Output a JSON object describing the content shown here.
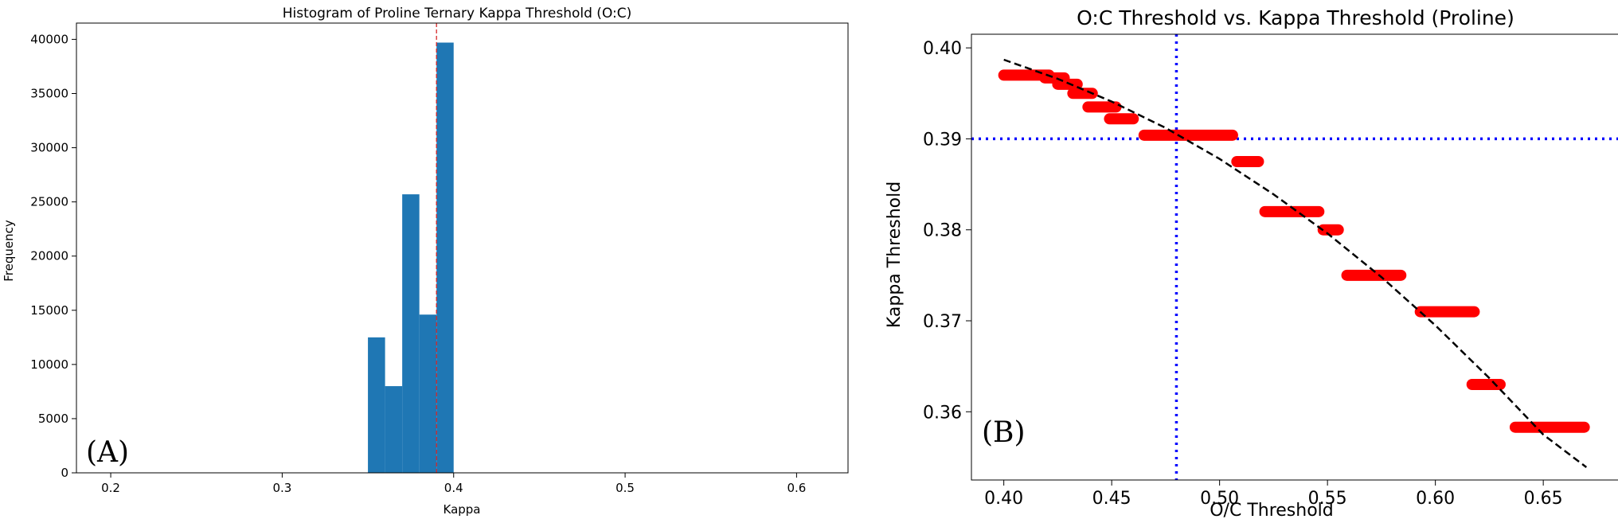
{
  "chart_data": [
    {
      "type": "bar",
      "panel_label": "(A)",
      "title": "Histogram of Proline Ternary Kappa Threshold (O:C)",
      "xlabel": "Kappa",
      "ylabel": "Frequency",
      "xlim": [
        0.18,
        0.63
      ],
      "ylim": [
        0,
        41500
      ],
      "xticks": [
        0.2,
        0.3,
        0.4,
        0.5,
        0.6
      ],
      "xtick_labels": [
        "0.2",
        "0.3",
        "0.4",
        "0.5",
        "0.6"
      ],
      "yticks": [
        0,
        5000,
        10000,
        15000,
        20000,
        25000,
        30000,
        35000,
        40000
      ],
      "ytick_labels": [
        "0",
        "5000",
        "10000",
        "15000",
        "20000",
        "25000",
        "30000",
        "35000",
        "40000"
      ],
      "bin_width": 0.01,
      "bin_starts": [
        0.35,
        0.36,
        0.37,
        0.38,
        0.39
      ],
      "values": [
        12500,
        8000,
        25700,
        14600,
        39700
      ],
      "bar_color": "#1f77b4",
      "reference_line": {
        "x": 0.39,
        "color": "#d62728",
        "style": "dashed"
      }
    },
    {
      "type": "scatter",
      "panel_label": "(B)",
      "title": "O:C Threshold vs. Kappa Threshold (Proline)",
      "xlabel": "O/C Threshold",
      "ylabel": "Kappa Threshold",
      "xlim": [
        0.385,
        0.685
      ],
      "ylim": [
        0.3525,
        0.4015
      ],
      "xticks": [
        0.4,
        0.45,
        0.5,
        0.55,
        0.6,
        0.65
      ],
      "xtick_labels": [
        "0.40",
        "0.45",
        "0.50",
        "0.55",
        "0.60",
        "0.65"
      ],
      "yticks": [
        0.36,
        0.37,
        0.38,
        0.39,
        0.4
      ],
      "ytick_labels": [
        "0.36",
        "0.37",
        "0.38",
        "0.39",
        "0.40"
      ],
      "point_color": "#ff0000",
      "segments": [
        {
          "x_start": 0.4,
          "x_end": 0.421,
          "y": 0.397
        },
        {
          "x_start": 0.419,
          "x_end": 0.428,
          "y": 0.3967
        },
        {
          "x_start": 0.425,
          "x_end": 0.434,
          "y": 0.396
        },
        {
          "x_start": 0.432,
          "x_end": 0.441,
          "y": 0.395
        },
        {
          "x_start": 0.439,
          "x_end": 0.452,
          "y": 0.3935
        },
        {
          "x_start": 0.449,
          "x_end": 0.46,
          "y": 0.3922
        },
        {
          "x_start": 0.465,
          "x_end": 0.506,
          "y": 0.3904
        },
        {
          "x_start": 0.508,
          "x_end": 0.518,
          "y": 0.3875
        },
        {
          "x_start": 0.521,
          "x_end": 0.546,
          "y": 0.382
        },
        {
          "x_start": 0.548,
          "x_end": 0.555,
          "y": 0.38
        },
        {
          "x_start": 0.559,
          "x_end": 0.584,
          "y": 0.375
        },
        {
          "x_start": 0.593,
          "x_end": 0.618,
          "y": 0.371
        },
        {
          "x_start": 0.617,
          "x_end": 0.63,
          "y": 0.363
        },
        {
          "x_start": 0.637,
          "x_end": 0.669,
          "y": 0.3583
        }
      ],
      "fit_curve": {
        "color": "#000000",
        "style": "dashed",
        "x": [
          0.4,
          0.425,
          0.45,
          0.475,
          0.5,
          0.525,
          0.55,
          0.575,
          0.6,
          0.625,
          0.65,
          0.67
        ],
        "y": [
          0.3987,
          0.3966,
          0.3941,
          0.3912,
          0.3878,
          0.3839,
          0.3796,
          0.3748,
          0.3695,
          0.3637,
          0.3575,
          0.3539
        ]
      },
      "reference_lines": [
        {
          "orientation": "horizontal",
          "y": 0.39,
          "color": "#0000ff",
          "style": "dotted"
        },
        {
          "orientation": "vertical",
          "x": 0.48,
          "color": "#0000ff",
          "style": "dotted"
        }
      ]
    }
  ]
}
